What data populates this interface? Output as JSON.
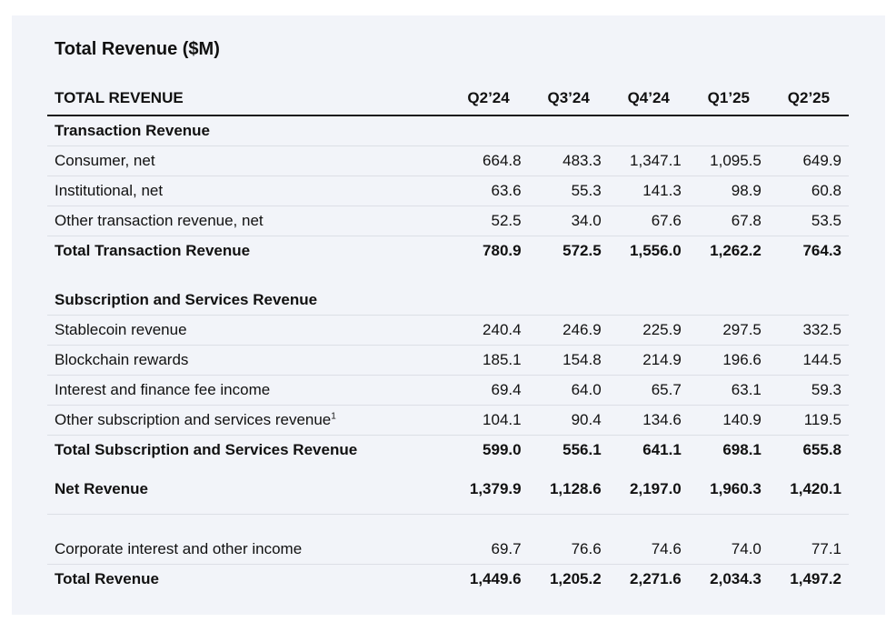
{
  "title": "Total Revenue ($M)",
  "header": {
    "label": "TOTAL REVENUE",
    "periods": [
      "Q2’24",
      "Q3’24",
      "Q4’24",
      "Q1’25",
      "Q2’25"
    ]
  },
  "transaction": {
    "heading": "Transaction Revenue",
    "rows": [
      {
        "label": "Consumer, net",
        "values": [
          "664.8",
          "483.3",
          "1,347.1",
          "1,095.5",
          "649.9"
        ]
      },
      {
        "label": "Institutional, net",
        "values": [
          "63.6",
          "55.3",
          "141.3",
          "98.9",
          "60.8"
        ]
      },
      {
        "label": "Other transaction revenue, net",
        "values": [
          "52.5",
          "34.0",
          "67.6",
          "67.8",
          "53.5"
        ]
      }
    ],
    "total": {
      "label": "Total Transaction Revenue",
      "values": [
        "780.9",
        "572.5",
        "1,556.0",
        "1,262.2",
        "764.3"
      ]
    }
  },
  "subscription": {
    "heading": "Subscription and Services Revenue",
    "rows": [
      {
        "label": "Stablecoin revenue",
        "values": [
          "240.4",
          "246.9",
          "225.9",
          "297.5",
          "332.5"
        ]
      },
      {
        "label": "Blockchain rewards",
        "values": [
          "185.1",
          "154.8",
          "214.9",
          "196.6",
          "144.5"
        ]
      },
      {
        "label": "Interest and finance fee income",
        "values": [
          "69.4",
          "64.0",
          "65.7",
          "63.1",
          "59.3"
        ]
      }
    ],
    "other_row": {
      "label": "Other subscription and services revenue",
      "footnote": "1",
      "values": [
        "104.1",
        "90.4",
        "134.6",
        "140.9",
        "119.5"
      ]
    },
    "total": {
      "label": "Total Subscription and Services Revenue",
      "values": [
        "599.0",
        "556.1",
        "641.1",
        "698.1",
        "655.8"
      ]
    }
  },
  "net_revenue": {
    "label": "Net Revenue",
    "values": [
      "1,379.9",
      "1,128.6",
      "2,197.0",
      "1,960.3",
      "1,420.1"
    ]
  },
  "corporate": {
    "label": "Corporate interest and other income",
    "values": [
      "69.7",
      "76.6",
      "74.6",
      "74.0",
      "77.1"
    ]
  },
  "total_revenue": {
    "label": "Total Revenue",
    "values": [
      "1,449.6",
      "1,205.2",
      "2,271.6",
      "2,034.3",
      "1,497.2"
    ]
  }
}
